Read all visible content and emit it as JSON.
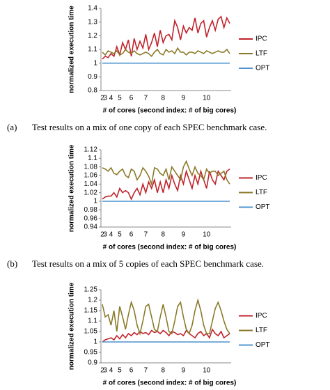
{
  "chart_data": [
    {
      "type": "line",
      "xlabel": "# of cores (second index: # of big cores)",
      "ylabel": "normalized execution time",
      "panel": "(a)",
      "caption": "Test results on a mix of one copy of each SPEC benchmark case.",
      "categories": [
        "2",
        "3",
        null,
        "4",
        null,
        null,
        "5",
        null,
        null,
        null,
        "6",
        null,
        null,
        null,
        null,
        "7",
        null,
        null,
        null,
        null,
        null,
        "8",
        null,
        null,
        null,
        null,
        null,
        null,
        "9",
        null,
        null,
        null,
        null,
        null,
        null,
        null,
        "10",
        null,
        null,
        null,
        null,
        null,
        null,
        null,
        null
      ],
      "ylim": [
        0.8,
        1.4
      ],
      "yticks": [
        0.8,
        0.9,
        1,
        1.1,
        1.2,
        1.3,
        1.4
      ],
      "grid": false,
      "series": [
        {
          "name": "IPC",
          "color": "#c0232b",
          "values": [
            1.03,
            1.05,
            1.04,
            1.07,
            1.05,
            1.12,
            1.06,
            1.15,
            1.1,
            1.17,
            1.05,
            1.18,
            1.1,
            1.16,
            1.11,
            1.21,
            1.1,
            1.15,
            1.22,
            1.12,
            1.24,
            1.15,
            1.2,
            1.21,
            1.17,
            1.31,
            1.26,
            1.17,
            1.27,
            1.22,
            1.26,
            1.24,
            1.33,
            1.22,
            1.29,
            1.31,
            1.19,
            1.26,
            1.31,
            1.24,
            1.32,
            1.34,
            1.26,
            1.33,
            1.29
          ]
        },
        {
          "name": "LTF",
          "color": "#8b7a2a",
          "values": [
            1.08,
            1.06,
            1.09,
            1.08,
            1.07,
            1.09,
            1.06,
            1.07,
            1.1,
            1.08,
            1.07,
            1.09,
            1.07,
            1.06,
            1.07,
            1.08,
            1.07,
            1.05,
            1.08,
            1.1,
            1.07,
            1.06,
            1.1,
            1.08,
            1.09,
            1.07,
            1.11,
            1.08,
            1.08,
            1.06,
            1.08,
            1.08,
            1.07,
            1.09,
            1.08,
            1.07,
            1.09,
            1.08,
            1.07,
            1.08,
            1.09,
            1.08,
            1.08,
            1.1,
            1.07
          ]
        },
        {
          "name": "OPT",
          "color": "#4f94cd",
          "values": [
            1,
            1,
            1,
            1,
            1,
            1,
            1,
            1,
            1,
            1,
            1,
            1,
            1,
            1,
            1,
            1,
            1,
            1,
            1,
            1,
            1,
            1,
            1,
            1,
            1,
            1,
            1,
            1,
            1,
            1,
            1,
            1,
            1,
            1,
            1,
            1,
            1,
            1,
            1,
            1,
            1,
            1,
            1,
            1,
            1
          ]
        }
      ]
    },
    {
      "type": "line",
      "xlabel": "# of cores (second index: # of big cores)",
      "ylabel": "normalized execution time",
      "panel": "(b)",
      "caption": "Test results on a mix of 5 copies of each SPEC benchmark case.",
      "categories": [
        "2",
        "3",
        null,
        "4",
        null,
        null,
        "5",
        null,
        null,
        null,
        "6",
        null,
        null,
        null,
        null,
        "7",
        null,
        null,
        null,
        null,
        null,
        "8",
        null,
        null,
        null,
        null,
        null,
        null,
        "9",
        null,
        null,
        null,
        null,
        null,
        null,
        null,
        "10",
        null,
        null,
        null,
        null,
        null,
        null,
        null,
        null
      ],
      "ylim": [
        0.94,
        1.12
      ],
      "yticks": [
        0.94,
        0.96,
        0.98,
        1,
        1.02,
        1.04,
        1.06,
        1.08,
        1.1,
        1.12
      ],
      "grid": false,
      "series": [
        {
          "name": "IPC",
          "color": "#c0232b",
          "values": [
            1.005,
            1.01,
            1.012,
            1.012,
            1.02,
            1.01,
            1.03,
            1.02,
            1.025,
            1.02,
            1.005,
            1.02,
            1.03,
            1.015,
            1.04,
            1.02,
            1.045,
            1.03,
            1.05,
            1.02,
            1.045,
            1.02,
            1.05,
            1.03,
            1.06,
            1.04,
            1.025,
            1.06,
            1.04,
            1.07,
            1.05,
            1.03,
            1.06,
            1.04,
            1.07,
            1.05,
            1.03,
            1.07,
            1.05,
            1.04,
            1.07,
            1.06,
            1.05,
            1.07,
            1.075
          ]
        },
        {
          "name": "LTF",
          "color": "#8b7a2a",
          "values": [
            1.078,
            1.075,
            1.07,
            1.078,
            1.065,
            1.062,
            1.07,
            1.075,
            1.06,
            1.055,
            1.075,
            1.07,
            1.05,
            1.06,
            1.078,
            1.07,
            1.058,
            1.04,
            1.078,
            1.075,
            1.065,
            1.06,
            1.075,
            1.05,
            1.08,
            1.07,
            1.06,
            1.05,
            1.08,
            1.093,
            1.075,
            1.06,
            1.08,
            1.065,
            1.06,
            1.05,
            1.075,
            1.065,
            1.07,
            1.07,
            1.06,
            1.065,
            1.07,
            1.05,
            1.04
          ]
        },
        {
          "name": "OPT",
          "color": "#4f94cd",
          "values": [
            1,
            1,
            1,
            1,
            1,
            1,
            1,
            1,
            1,
            1,
            1,
            1,
            1,
            1,
            1,
            1,
            1,
            1,
            1,
            1,
            1,
            1,
            1,
            1,
            1,
            1,
            1,
            1,
            1,
            1,
            1,
            1,
            1,
            1,
            1,
            1,
            1,
            1,
            1,
            1,
            1,
            1,
            1,
            1,
            1
          ]
        }
      ]
    },
    {
      "type": "line",
      "xlabel": "# of cores (second index: # of big cores)",
      "ylabel": "normalized execution time",
      "categories": [
        "2",
        "3",
        null,
        "4",
        null,
        null,
        "5",
        null,
        null,
        null,
        "6",
        null,
        null,
        null,
        null,
        "7",
        null,
        null,
        null,
        null,
        null,
        "8",
        null,
        null,
        null,
        null,
        null,
        null,
        "9",
        null,
        null,
        null,
        null,
        null,
        null,
        null,
        "10",
        null,
        null,
        null,
        null,
        null,
        null,
        null,
        null
      ],
      "ylim": [
        0.9,
        1.25
      ],
      "yticks": [
        0.9,
        0.95,
        1,
        1.05,
        1.1,
        1.15,
        1.2,
        1.25
      ],
      "grid": false,
      "series": [
        {
          "name": "IPC",
          "color": "#c0232b",
          "values": [
            1.0,
            1.01,
            1.015,
            1.02,
            1.01,
            1.03,
            1.015,
            1.035,
            1.02,
            1.04,
            1.03,
            1.045,
            1.035,
            1.05,
            1.04,
            1.045,
            1.035,
            1.055,
            1.045,
            1.05,
            1.04,
            1.055,
            1.045,
            1.03,
            1.05,
            1.045,
            1.035,
            1.04,
            1.03,
            1.055,
            1.04,
            1.03,
            1.02,
            1.04,
            1.05,
            1.03,
            1.04,
            1.02,
            1.06,
            1.04,
            1.03,
            1.05,
            1.02,
            1.03,
            1.04
          ]
        },
        {
          "name": "LTF",
          "color": "#8b7a2a",
          "values": [
            1.18,
            1.12,
            1.13,
            1.08,
            1.15,
            1.05,
            1.17,
            1.12,
            1.06,
            1.13,
            1.19,
            1.15,
            1.08,
            1.04,
            1.1,
            1.17,
            1.18,
            1.12,
            1.06,
            1.05,
            1.12,
            1.18,
            1.12,
            1.05,
            1.04,
            1.1,
            1.17,
            1.19,
            1.12,
            1.06,
            1.04,
            1.08,
            1.15,
            1.2,
            1.15,
            1.08,
            1.04,
            1.04,
            1.1,
            1.16,
            1.19,
            1.15,
            1.1,
            1.06,
            1.04
          ]
        },
        {
          "name": "OPT",
          "color": "#4f94cd",
          "values": [
            1,
            1,
            1,
            1,
            1,
            1,
            1,
            1,
            1,
            1,
            1,
            1,
            1,
            1,
            1,
            1,
            1,
            1,
            1,
            1,
            1,
            1,
            1,
            1,
            1,
            1,
            1,
            1,
            1,
            1,
            1,
            1,
            1,
            1,
            1,
            1,
            1,
            1,
            1,
            1,
            1,
            1,
            1,
            1,
            1
          ]
        }
      ]
    }
  ]
}
